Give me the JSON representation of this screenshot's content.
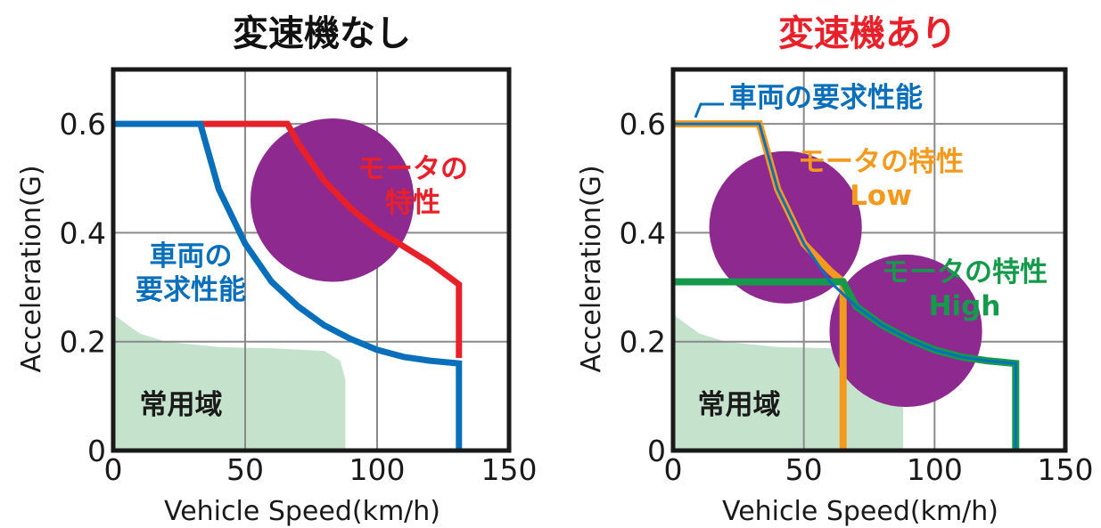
{
  "chart_data": [
    {
      "type": "line",
      "title": "変速機なし",
      "xlabel": "Vehicle Speed(km/h)",
      "ylabel": "Acceleration(G)",
      "xlim": [
        0,
        150
      ],
      "ylim": [
        0,
        0.7
      ],
      "xticks": [
        "0",
        "50",
        "100",
        "150"
      ],
      "yticks": [
        "0",
        "0.2",
        "0.4",
        "0.6"
      ],
      "grid": true,
      "colors": {
        "title": "#111111",
        "demand": "#0a6fba",
        "motor": "#e8202a",
        "usage": "#c5e3cc",
        "zone": "#8e2a8f"
      },
      "annotations": {
        "demand": "車両の\n要求性能",
        "motor": "モータの\n特性",
        "usage": "常用域"
      },
      "series": [
        {
          "name": "車両の要求性能",
          "points": [
            [
              0,
              0.6
            ],
            [
              33,
              0.6
            ],
            [
              40,
              0.48
            ],
            [
              50,
              0.38
            ],
            [
              60,
              0.31
            ],
            [
              70,
              0.265
            ],
            [
              80,
              0.23
            ],
            [
              90,
              0.205
            ],
            [
              100,
              0.185
            ],
            [
              110,
              0.172
            ],
            [
              120,
              0.165
            ],
            [
              131,
              0.16
            ],
            [
              131,
              0
            ]
          ]
        },
        {
          "name": "モータの特性",
          "points": [
            [
              33,
              0.6
            ],
            [
              66,
              0.6
            ],
            [
              70,
              0.565
            ],
            [
              80,
              0.495
            ],
            [
              90,
              0.445
            ],
            [
              100,
              0.405
            ],
            [
              110,
              0.375
            ],
            [
              120,
              0.345
            ],
            [
              131,
              0.305
            ],
            [
              131,
              0.17
            ]
          ]
        }
      ],
      "usage_region": [
        [
          0,
          0.25
        ],
        [
          10,
          0.215
        ],
        [
          20,
          0.2
        ],
        [
          40,
          0.19
        ],
        [
          60,
          0.188
        ],
        [
          80,
          0.183
        ],
        [
          86,
          0.165
        ],
        [
          88,
          0.13
        ],
        [
          88,
          0
        ],
        [
          0,
          0
        ]
      ],
      "zones": [
        {
          "x": 83,
          "y": 0.46,
          "r": 0.15
        }
      ]
    },
    {
      "type": "line",
      "title": "変速機あり",
      "xlabel": "Vehicle Speed(km/h)",
      "ylabel": "Acceleration(G)",
      "xlim": [
        0,
        150
      ],
      "ylim": [
        0,
        0.7
      ],
      "xticks": [
        "0",
        "50",
        "100",
        "150"
      ],
      "yticks": [
        "0",
        "0.2",
        "0.4",
        "0.6"
      ],
      "grid": true,
      "colors": {
        "title": "#e8202a",
        "demand": "#0a6fba",
        "low": "#f39a1e",
        "high": "#149a4a",
        "usage": "#c5e3cc",
        "zone": "#8e2a8f"
      },
      "annotations": {
        "demand": "車両の要求性能",
        "low": "モータの特性\nLow",
        "high": "モータの特性\nHigh",
        "usage": "常用域"
      },
      "series": [
        {
          "name": "車両の要求性能",
          "points": [
            [
              0,
              0.6
            ],
            [
              33,
              0.6
            ],
            [
              40,
              0.48
            ],
            [
              50,
              0.38
            ],
            [
              60,
              0.31
            ],
            [
              70,
              0.265
            ],
            [
              80,
              0.23
            ],
            [
              90,
              0.205
            ],
            [
              100,
              0.185
            ],
            [
              110,
              0.172
            ],
            [
              120,
              0.165
            ],
            [
              131,
              0.16
            ],
            [
              131,
              0
            ]
          ]
        },
        {
          "name": "モータの特性 Low",
          "points": [
            [
              0,
              0.6
            ],
            [
              33,
              0.6
            ],
            [
              40,
              0.48
            ],
            [
              50,
              0.38
            ],
            [
              60,
              0.33
            ],
            [
              65,
              0.31
            ],
            [
              65,
              0
            ]
          ]
        },
        {
          "name": "モータの特性 High",
          "points": [
            [
              0,
              0.31
            ],
            [
              65,
              0.31
            ],
            [
              70,
              0.265
            ],
            [
              80,
              0.23
            ],
            [
              90,
              0.205
            ],
            [
              100,
              0.185
            ],
            [
              110,
              0.172
            ],
            [
              120,
              0.165
            ],
            [
              131,
              0.16
            ],
            [
              131,
              0
            ]
          ]
        }
      ],
      "usage_region": [
        [
          0,
          0.25
        ],
        [
          10,
          0.215
        ],
        [
          20,
          0.2
        ],
        [
          40,
          0.19
        ],
        [
          60,
          0.188
        ],
        [
          80,
          0.183
        ],
        [
          86,
          0.165
        ],
        [
          88,
          0.13
        ],
        [
          88,
          0
        ],
        [
          0,
          0
        ]
      ],
      "zones": [
        {
          "x": 43,
          "y": 0.41,
          "r": 0.14
        },
        {
          "x": 89,
          "y": 0.22,
          "r": 0.14
        }
      ]
    }
  ]
}
